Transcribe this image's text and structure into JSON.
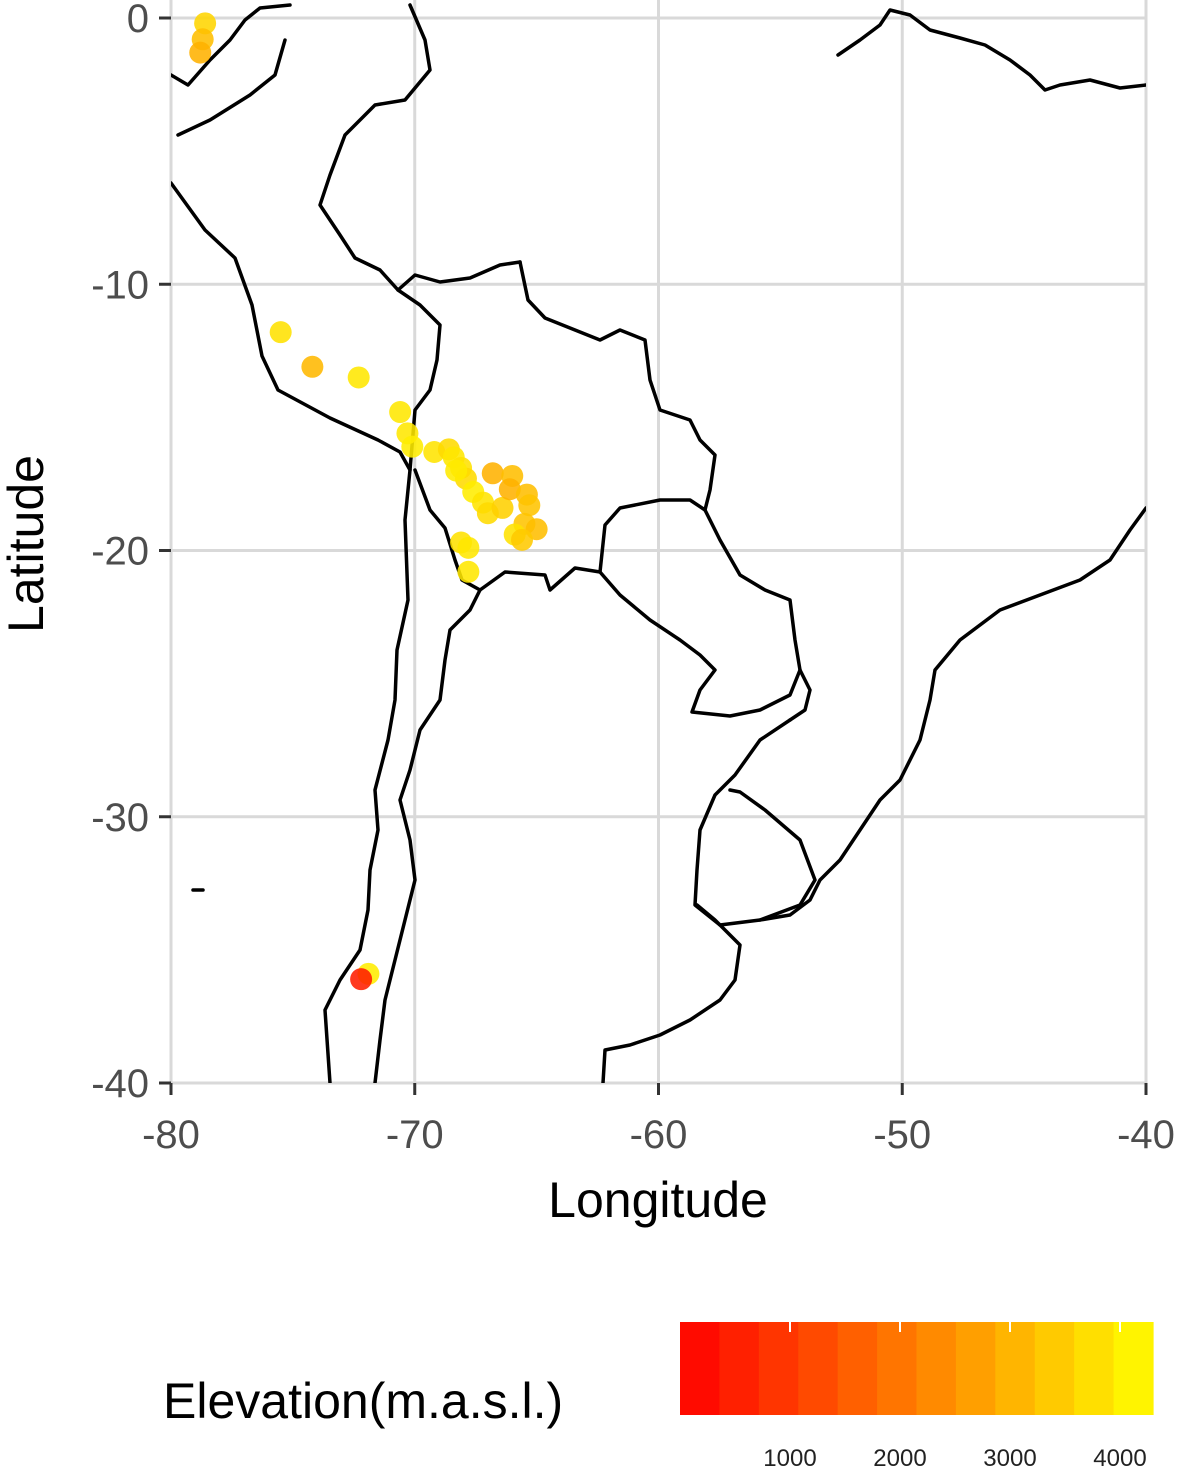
{
  "chart_data": {
    "type": "scatter",
    "xlabel": "Longitude",
    "ylabel": "Latitude",
    "xlim": [
      -80,
      -40
    ],
    "ylim": [
      -40,
      0
    ],
    "x_ticks": [
      "-80",
      "-70",
      "-60",
      "-50",
      "-40"
    ],
    "y_ticks": [
      "0",
      "-10",
      "-20",
      "-30",
      "-40"
    ],
    "grid": true,
    "basemap": "South America country outlines",
    "color_by": "elevation",
    "legend": {
      "title": "Elevation(m.a.s.l.)",
      "position": "bottom",
      "tick_labels": [
        "1000",
        "2000",
        "3000",
        "4000"
      ],
      "color_low": "#ff0000",
      "color_high": "#ffff00",
      "range": [
        0,
        4300
      ]
    },
    "points": [
      {
        "lon": -78.6,
        "lat": -0.2,
        "elevation": 3600
      },
      {
        "lon": -78.7,
        "lat": -0.8,
        "elevation": 3200
      },
      {
        "lon": -78.8,
        "lat": -1.3,
        "elevation": 3000
      },
      {
        "lon": -75.5,
        "lat": -11.8,
        "elevation": 3800
      },
      {
        "lon": -74.2,
        "lat": -13.1,
        "elevation": 3100
      },
      {
        "lon": -72.3,
        "lat": -13.5,
        "elevation": 3900
      },
      {
        "lon": -70.6,
        "lat": -14.8,
        "elevation": 3900
      },
      {
        "lon": -70.3,
        "lat": -15.6,
        "elevation": 3900
      },
      {
        "lon": -70.1,
        "lat": -16.1,
        "elevation": 4000
      },
      {
        "lon": -69.2,
        "lat": -16.3,
        "elevation": 3850
      },
      {
        "lon": -68.6,
        "lat": -16.2,
        "elevation": 3700
      },
      {
        "lon": -68.4,
        "lat": -16.5,
        "elevation": 3900
      },
      {
        "lon": -68.1,
        "lat": -16.9,
        "elevation": 3800
      },
      {
        "lon": -67.9,
        "lat": -17.3,
        "elevation": 3700
      },
      {
        "lon": -68.3,
        "lat": -17.0,
        "elevation": 3950
      },
      {
        "lon": -67.6,
        "lat": -17.8,
        "elevation": 4000
      },
      {
        "lon": -67.2,
        "lat": -18.2,
        "elevation": 3850
      },
      {
        "lon": -67.0,
        "lat": -18.6,
        "elevation": 3700
      },
      {
        "lon": -66.8,
        "lat": -17.1,
        "elevation": 3000
      },
      {
        "lon": -66.4,
        "lat": -18.4,
        "elevation": 3500
      },
      {
        "lon": -66.0,
        "lat": -17.2,
        "elevation": 3200
      },
      {
        "lon": -66.1,
        "lat": -17.7,
        "elevation": 3000
      },
      {
        "lon": -65.4,
        "lat": -17.9,
        "elevation": 3200
      },
      {
        "lon": -65.3,
        "lat": -18.3,
        "elevation": 3300
      },
      {
        "lon": -65.5,
        "lat": -19.0,
        "elevation": 3300
      },
      {
        "lon": -65.0,
        "lat": -19.2,
        "elevation": 3200
      },
      {
        "lon": -65.9,
        "lat": -19.4,
        "elevation": 3800
      },
      {
        "lon": -65.6,
        "lat": -19.6,
        "elevation": 3400
      },
      {
        "lon": -68.1,
        "lat": -19.7,
        "elevation": 3800
      },
      {
        "lon": -67.8,
        "lat": -19.9,
        "elevation": 3900
      },
      {
        "lon": -67.8,
        "lat": -20.8,
        "elevation": 3900
      },
      {
        "lon": -71.9,
        "lat": -35.9,
        "elevation": 4000
      },
      {
        "lon": -72.2,
        "lat": -36.1,
        "elevation": 500
      }
    ]
  }
}
